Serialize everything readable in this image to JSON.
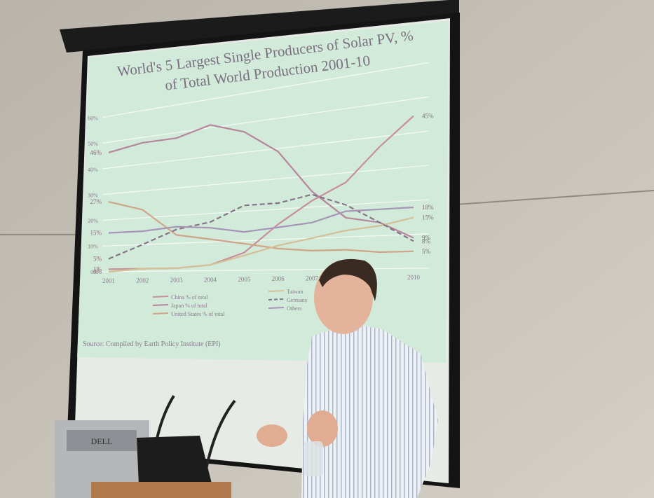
{
  "chart_data": {
    "type": "line",
    "title": "World's 5 Largest Single Producers of Solar PV, % of Total World Production 2001-10",
    "source": "Source: Compiled by Earth Policy Institute (EPI)",
    "categories": [
      "2001",
      "2002",
      "2003",
      "2004",
      "2005",
      "2006",
      "2007",
      null,
      null,
      "2010"
    ],
    "ylim": [
      0,
      60
    ],
    "yticks": [
      {
        "value": 0,
        "label": "0%"
      },
      {
        "value": 10,
        "label": "10%"
      },
      {
        "value": 20,
        "label": "20%"
      },
      {
        "value": 30,
        "label": "30%"
      },
      {
        "value": 40,
        "label": "40%"
      },
      {
        "value": 50,
        "label": "50%"
      },
      {
        "value": 60,
        "label": "60%"
      }
    ],
    "grid": true,
    "series": [
      {
        "name": "China % of total",
        "color": "#c98f9a",
        "dashed": false,
        "values": [
          1,
          1,
          1,
          2,
          6,
          15,
          22,
          27,
          37,
          45
        ],
        "value_labels": [
          "1%",
          null,
          null,
          null,
          null,
          null,
          null,
          null,
          null,
          "45%"
        ]
      },
      {
        "name": "Japan % of total",
        "color": "#b5869c",
        "dashed": false,
        "values": [
          46,
          48,
          48,
          51,
          47,
          39,
          25,
          16,
          14,
          9
        ],
        "value_labels": [
          "46%",
          null,
          null,
          null,
          null,
          null,
          null,
          null,
          null,
          "9%"
        ]
      },
      {
        "name": "United States % of total",
        "color": "#cfa58a",
        "dashed": false,
        "values": [
          27,
          23,
          13,
          11,
          9,
          7,
          6,
          6,
          5,
          5
        ],
        "value_labels": [
          "27%",
          null,
          null,
          null,
          null,
          null,
          null,
          null,
          null,
          "5%"
        ]
      },
      {
        "name": "Taiwan",
        "color": "#d3c096",
        "dashed": false,
        "values": [
          0,
          1,
          1,
          2,
          5,
          8,
          10,
          12,
          13,
          15
        ],
        "value_labels": [
          "0%",
          null,
          null,
          null,
          null,
          null,
          null,
          null,
          null,
          "15%"
        ]
      },
      {
        "name": "Germany",
        "color": "#857488",
        "dashed": true,
        "values": [
          5,
          10,
          15,
          17,
          22,
          22,
          24,
          20,
          14,
          8
        ],
        "value_labels": [
          "5%",
          null,
          null,
          null,
          null,
          null,
          null,
          null,
          null,
          "8%"
        ]
      },
      {
        "name": "Others",
        "color": "#a595b6",
        "dashed": false,
        "values": [
          15,
          15,
          16,
          15,
          13,
          14,
          15,
          18,
          18,
          18
        ],
        "value_labels": [
          "15%",
          null,
          null,
          null,
          null,
          null,
          null,
          null,
          null,
          "18%"
        ]
      }
    ]
  },
  "monitor_brand": "DELL"
}
